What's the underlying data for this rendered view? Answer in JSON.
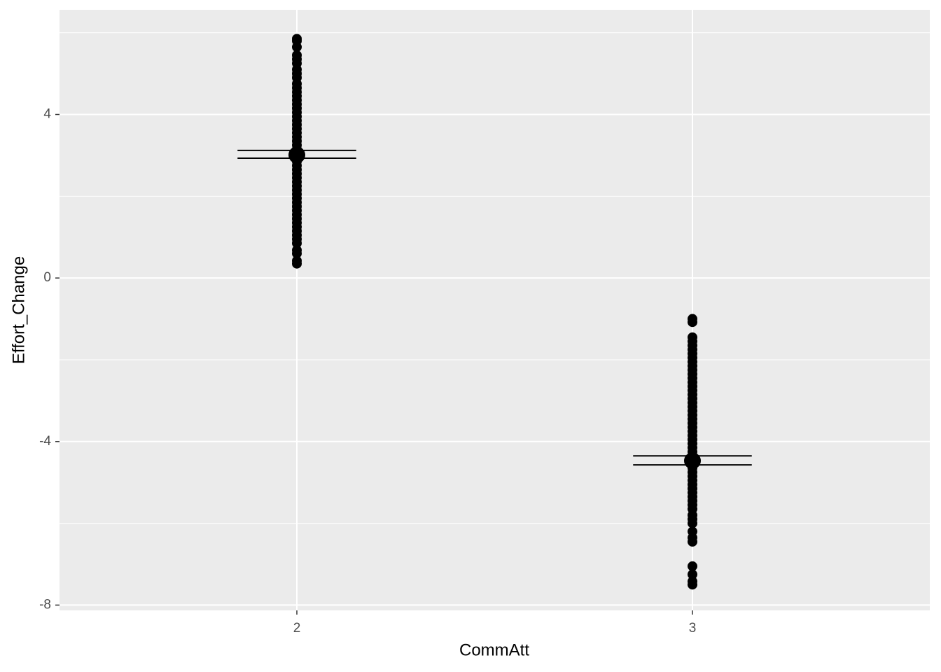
{
  "chart_data": {
    "type": "strip",
    "x_label": "CommAtt",
    "y_label": "Effort_Change",
    "categories": [
      "2",
      "3"
    ],
    "points": [
      [
        0.35,
        0.42,
        0.6,
        0.68,
        0.85,
        0.95,
        1.05,
        1.15,
        1.25,
        1.35,
        1.45,
        1.55,
        1.65,
        1.75,
        1.85,
        1.95,
        2.05,
        2.15,
        2.25,
        2.35,
        2.45,
        2.55,
        2.65,
        2.75,
        2.85,
        2.95,
        3.05,
        3.15,
        3.25,
        3.35,
        3.45,
        3.55,
        3.65,
        3.75,
        3.85,
        3.95,
        4.05,
        4.15,
        4.25,
        4.35,
        4.45,
        4.55,
        4.65,
        4.75,
        4.9,
        5.0,
        5.1,
        5.25,
        5.35,
        5.45,
        5.65,
        5.8,
        5.85
      ],
      [
        -1.0,
        -1.08,
        -1.45,
        -1.55,
        -1.65,
        -1.75,
        -1.85,
        -1.95,
        -2.05,
        -2.15,
        -2.25,
        -2.35,
        -2.45,
        -2.55,
        -2.65,
        -2.75,
        -2.85,
        -2.95,
        -3.05,
        -3.15,
        -3.25,
        -3.35,
        -3.45,
        -3.55,
        -3.65,
        -3.75,
        -3.85,
        -3.95,
        -4.05,
        -4.15,
        -4.25,
        -4.35,
        -4.45,
        -4.55,
        -4.65,
        -4.75,
        -4.85,
        -4.95,
        -5.05,
        -5.15,
        -5.25,
        -5.35,
        -5.45,
        -5.55,
        -5.65,
        -5.8,
        -5.9,
        -6.0,
        -6.2,
        -6.35,
        -6.45,
        -7.05,
        -7.25,
        -7.42,
        -7.5
      ]
    ],
    "means": [
      3.01,
      -4.47
    ],
    "error_low": [
      2.93,
      -4.57
    ],
    "error_high": [
      3.12,
      -4.35
    ],
    "color": "#000000",
    "ylim": [
      -8.13,
      6.56
    ],
    "yticks": [
      -8,
      -4,
      0,
      4
    ],
    "y_minor_ticks": [
      -6,
      -2,
      2,
      6
    ],
    "grid": true
  }
}
